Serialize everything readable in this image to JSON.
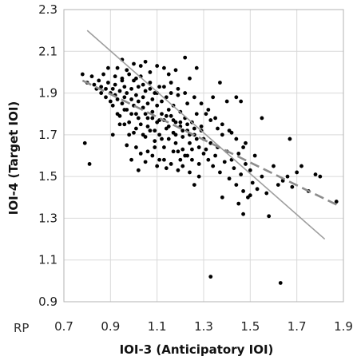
{
  "chart_data": {
    "type": "scatter",
    "title": "",
    "xlabel": "IOI-3 (Anticipatory IOI)",
    "ylabel": "IOI-4 (Target IOI)",
    "corner_label": "RP",
    "xlim": [
      0.7,
      1.9
    ],
    "ylim": [
      0.9,
      2.3
    ],
    "x_ticks": [
      "0.7",
      "0.9",
      "1.1",
      "1.3",
      "1.5",
      "1.7",
      "1.9"
    ],
    "y_ticks": [
      "0.9",
      "1.1",
      "1.3",
      "1.5",
      "1.7",
      "1.9",
      "2.1",
      "2.3"
    ],
    "grid": {
      "x": true,
      "y": true,
      "color": "#d9d9d9"
    },
    "colors": {
      "points": "#000000",
      "solid_line": "#9e9e9e",
      "dashed_line": "#8c8c8c",
      "grid": "#d9d9d9",
      "frame": "#b3b3b3"
    },
    "points": [
      [
        0.79,
        1.66
      ],
      [
        0.81,
        1.56
      ],
      [
        0.78,
        1.99
      ],
      [
        0.8,
        1.95
      ],
      [
        0.82,
        1.98
      ],
      [
        0.83,
        1.94
      ],
      [
        0.84,
        1.92
      ],
      [
        0.85,
        1.96
      ],
      [
        0.86,
        1.93
      ],
      [
        0.86,
        1.9
      ],
      [
        0.87,
        1.99
      ],
      [
        0.88,
        1.88
      ],
      [
        0.88,
        1.92
      ],
      [
        0.89,
        1.95
      ],
      [
        0.9,
        1.86
      ],
      [
        0.9,
        1.9
      ],
      [
        0.91,
        1.92
      ],
      [
        0.91,
        1.84
      ],
      [
        0.92,
        1.94
      ],
      [
        0.92,
        1.89
      ],
      [
        0.93,
        1.87
      ],
      [
        0.93,
        2.02
      ],
      [
        0.94,
        1.91
      ],
      [
        0.94,
        1.79
      ],
      [
        0.95,
        1.96
      ],
      [
        0.95,
        1.85
      ],
      [
        0.96,
        1.88
      ],
      [
        0.96,
        1.93
      ],
      [
        0.97,
        1.82
      ],
      [
        0.97,
        1.9
      ],
      [
        0.98,
        1.99
      ],
      [
        0.98,
        1.76
      ],
      [
        0.99,
        1.87
      ],
      [
        0.99,
        1.92
      ],
      [
        1.0,
        1.84
      ],
      [
        1.0,
        1.96
      ],
      [
        1.0,
        1.71
      ],
      [
        1.01,
        1.89
      ],
      [
        1.01,
        1.8
      ],
      [
        1.02,
        1.93
      ],
      [
        1.02,
        1.86
      ],
      [
        1.03,
        1.75
      ],
      [
        1.03,
        1.98
      ],
      [
        1.04,
        1.83
      ],
      [
        1.04,
        1.88
      ],
      [
        1.05,
        1.69
      ],
      [
        1.05,
        1.91
      ],
      [
        1.06,
        1.78
      ],
      [
        1.06,
        1.85
      ],
      [
        1.07,
        1.95
      ],
      [
        1.07,
        1.72
      ],
      [
        1.08,
        1.87
      ],
      [
        1.08,
        1.81
      ],
      [
        1.09,
        1.67
      ],
      [
        1.09,
        1.9
      ],
      [
        1.1,
        1.76
      ],
      [
        1.1,
        1.84
      ],
      [
        1.11,
        1.93
      ],
      [
        1.11,
        1.7
      ],
      [
        1.12,
        1.8
      ],
      [
        1.12,
        1.86
      ],
      [
        1.13,
        1.64
      ],
      [
        1.13,
        1.77
      ],
      [
        1.14,
        1.88
      ],
      [
        1.14,
        1.73
      ],
      [
        1.15,
        1.82
      ],
      [
        1.15,
        1.68
      ],
      [
        1.16,
        1.79
      ],
      [
        1.16,
        1.95
      ],
      [
        1.17,
        1.71
      ],
      [
        1.17,
        1.84
      ],
      [
        1.18,
        1.66
      ],
      [
        1.18,
        1.76
      ],
      [
        1.19,
        1.89
      ],
      [
        1.19,
        1.62
      ],
      [
        1.2,
        1.74
      ],
      [
        1.2,
        1.81
      ],
      [
        1.21,
        1.69
      ],
      [
        1.22,
        1.78
      ],
      [
        1.22,
        1.6
      ],
      [
        1.23,
        1.72
      ],
      [
        1.23,
        1.85
      ],
      [
        1.24,
        1.66
      ],
      [
        1.25,
        1.76
      ],
      [
        1.25,
        1.58
      ],
      [
        1.26,
        1.7
      ],
      [
        1.27,
        1.8
      ],
      [
        1.28,
        1.64
      ],
      [
        1.29,
        1.72
      ],
      [
        1.3,
        1.61
      ],
      [
        0.89,
        2.02
      ],
      [
        0.92,
        1.98
      ],
      [
        0.95,
        2.06
      ],
      [
        0.97,
        2.01
      ],
      [
        1.0,
        2.04
      ],
      [
        1.03,
        2.03
      ],
      [
        1.05,
        2.05
      ],
      [
        1.07,
        2.0
      ],
      [
        1.1,
        2.03
      ],
      [
        1.13,
        2.02
      ],
      [
        1.15,
        1.99
      ],
      [
        1.18,
        2.01
      ],
      [
        1.22,
        2.07
      ],
      [
        1.24,
        1.97
      ],
      [
        1.27,
        2.02
      ],
      [
        0.93,
        1.8
      ],
      [
        0.96,
        1.75
      ],
      [
        0.98,
        1.7
      ],
      [
        1.01,
        1.64
      ],
      [
        1.03,
        1.61
      ],
      [
        1.05,
        1.57
      ],
      [
        1.08,
        1.6
      ],
      [
        1.1,
        1.55
      ],
      [
        1.13,
        1.58
      ],
      [
        1.16,
        1.56
      ],
      [
        1.19,
        1.53
      ],
      [
        1.21,
        1.55
      ],
      [
        1.24,
        1.52
      ],
      [
        1.26,
        1.46
      ],
      [
        1.28,
        1.5
      ],
      [
        1.3,
        1.68
      ],
      [
        1.31,
        1.63
      ],
      [
        1.32,
        1.58
      ],
      [
        1.33,
        1.66
      ],
      [
        1.34,
        1.55
      ],
      [
        1.35,
        1.6
      ],
      [
        1.36,
        1.64
      ],
      [
        1.37,
        1.52
      ],
      [
        1.38,
        1.7
      ],
      [
        1.39,
        1.57
      ],
      [
        1.4,
        1.62
      ],
      [
        1.41,
        1.49
      ],
      [
        1.42,
        1.58
      ],
      [
        1.43,
        1.54
      ],
      [
        1.44,
        1.46
      ],
      [
        1.45,
        1.61
      ],
      [
        1.46,
        1.51
      ],
      [
        1.47,
        1.43
      ],
      [
        1.48,
        1.56
      ],
      [
        1.49,
        1.4
      ],
      [
        1.5,
        1.53
      ],
      [
        1.51,
        1.47
      ],
      [
        1.52,
        1.6
      ],
      [
        1.53,
        1.44
      ],
      [
        1.55,
        1.5
      ],
      [
        1.57,
        1.42
      ],
      [
        1.58,
        1.31
      ],
      [
        1.6,
        1.55
      ],
      [
        1.62,
        1.46
      ],
      [
        1.64,
        1.48
      ],
      [
        1.66,
        1.5
      ],
      [
        1.68,
        1.45
      ],
      [
        1.7,
        1.52
      ],
      [
        1.72,
        1.55
      ],
      [
        1.75,
        1.43
      ],
      [
        1.78,
        1.51
      ],
      [
        1.8,
        1.5
      ],
      [
        1.87,
        1.38
      ],
      [
        1.34,
        1.88
      ],
      [
        1.37,
        1.95
      ],
      [
        1.4,
        1.86
      ],
      [
        1.44,
        1.88
      ],
      [
        1.46,
        1.86
      ],
      [
        1.55,
        1.78
      ],
      [
        1.67,
        1.68
      ],
      [
        1.31,
        1.8
      ],
      [
        1.33,
        1.77
      ],
      [
        1.29,
        1.74
      ],
      [
        1.36,
        1.73
      ],
      [
        1.42,
        1.71
      ],
      [
        1.48,
        1.66
      ],
      [
        1.33,
        1.02
      ],
      [
        1.63,
        0.99
      ],
      [
        1.45,
        1.37
      ],
      [
        1.47,
        1.32
      ],
      [
        1.5,
        1.41
      ],
      [
        1.38,
        1.4
      ],
      [
        1.28,
        1.56
      ],
      [
        1.25,
        1.63
      ],
      [
        1.21,
        1.63
      ],
      [
        0.94,
        1.75
      ],
      [
        0.91,
        1.7
      ],
      [
        0.97,
        1.65
      ],
      [
        0.99,
        1.58
      ],
      [
        1.02,
        1.53
      ],
      [
        1.06,
        1.62
      ],
      [
        1.09,
        1.64
      ],
      [
        1.11,
        1.58
      ],
      [
        1.14,
        1.54
      ],
      [
        1.17,
        1.62
      ],
      [
        1.2,
        1.58
      ],
      [
        1.23,
        1.6
      ],
      [
        1.01,
        1.73
      ],
      [
        1.04,
        1.7
      ],
      [
        1.06,
        1.74
      ],
      [
        1.09,
        1.72
      ],
      [
        1.12,
        1.68
      ],
      [
        1.15,
        1.74
      ],
      [
        1.18,
        1.7
      ],
      [
        1.21,
        1.72
      ],
      [
        1.24,
        1.7
      ],
      [
        1.27,
        1.68
      ],
      [
        0.96,
        1.82
      ],
      [
        0.99,
        1.8
      ],
      [
        1.02,
        1.78
      ],
      [
        1.05,
        1.8
      ],
      [
        1.08,
        1.78
      ],
      [
        1.11,
        1.77
      ],
      [
        1.14,
        1.79
      ],
      [
        1.17,
        1.77
      ],
      [
        1.2,
        1.76
      ],
      [
        1.23,
        1.75
      ],
      [
        1.26,
        1.73
      ],
      [
        0.95,
        1.97
      ],
      [
        1.01,
        1.97
      ],
      [
        1.04,
        1.94
      ],
      [
        1.07,
        1.92
      ],
      [
        1.1,
        1.9
      ],
      [
        1.13,
        1.93
      ],
      [
        1.16,
        1.9
      ],
      [
        1.19,
        1.92
      ],
      [
        1.22,
        1.9
      ],
      [
        1.26,
        1.88
      ],
      [
        1.29,
        1.85
      ],
      [
        1.32,
        1.82
      ],
      [
        1.35,
        1.78
      ],
      [
        1.38,
        1.75
      ],
      [
        1.41,
        1.72
      ],
      [
        1.44,
        1.68
      ],
      [
        1.47,
        1.64
      ]
    ],
    "series": [
      {
        "style": "solid",
        "x": [
          0.8,
          1.82
        ],
        "y": [
          2.2,
          1.2
        ]
      },
      {
        "style": "dashed",
        "x": [
          0.78,
          1.88
        ],
        "y": [
          1.96,
          1.36
        ]
      }
    ]
  }
}
